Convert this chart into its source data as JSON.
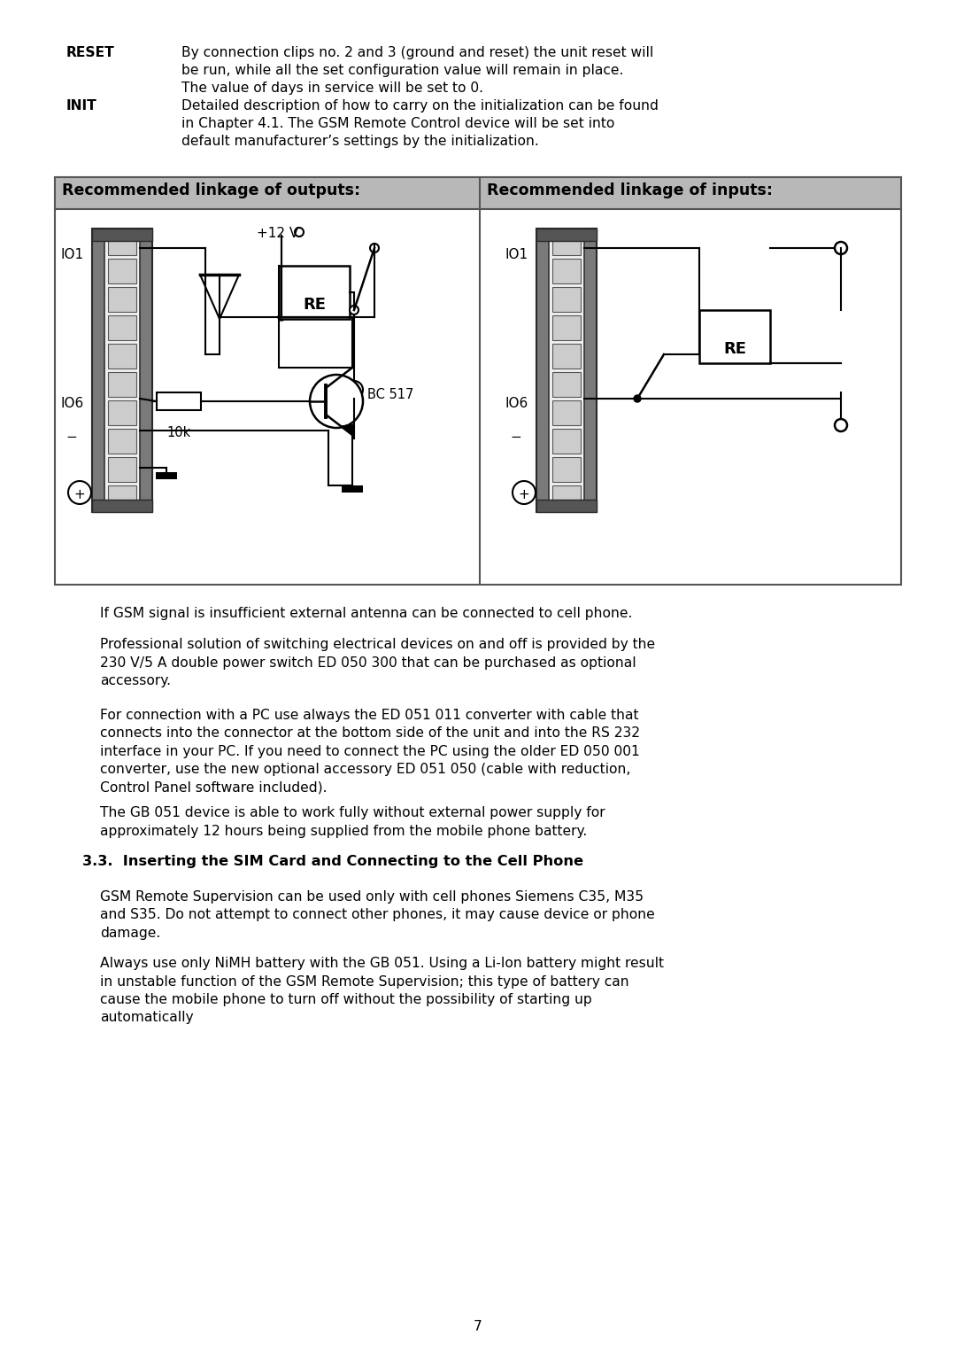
{
  "bg_color": "#ffffff",
  "text_color": "#000000",
  "table_border": "#555555",
  "header_bg": "#b8b8b8",
  "reset_label": "RESET",
  "reset_text_l1": "By connection clips no. 2 and 3 (ground and reset) the unit reset will",
  "reset_text_l2": "be run, while all the set configuration value will remain in place.",
  "reset_text_l3": "The value of days in service will be set to 0.",
  "init_label": "INIT",
  "init_text_l1": "Detailed description of how to carry on the initialization can be found",
  "init_text_l2": "in Chapter 4.1. The GSM Remote Control device will be set into",
  "init_text_l3": "default manufacturer’s settings by the initialization.",
  "table_header_left": "Recommended linkage of outputs:",
  "table_header_right": "Recommended linkage of inputs:",
  "para1": "If GSM signal is insufficient external antenna can be connected to cell phone.",
  "para2_l1": "Professional solution of switching electrical devices on and off is provided by the",
  "para2_l2": "230 V/5 A double power switch ED 050 300 that can be purchased as optional",
  "para2_l3": "accessory.",
  "para3_l1": "For connection with a PC use always the ED 051 011 converter with cable that",
  "para3_l2": "connects into the connector at the bottom side of the unit and into the RS 232",
  "para3_l3": "interface in your PC. If you need to connect the PC using the older ED 050 001",
  "para3_l4": "converter, use the new optional accessory ED 051 050 (cable with reduction,",
  "para3_l5": "Control Panel software included).",
  "para4_l1": "The GB 051 device is able to work fully without external power supply for",
  "para4_l2": "approximately 12 hours being supplied from the mobile phone battery.",
  "section_heading": "3.3.  Inserting the SIM Card and Connecting to the Cell Phone",
  "para5_l1": "GSM Remote Supervision can be used only with cell phones Siemens C35, M35",
  "para5_l2": "and S35. Do not attempt to connect other phones, it may cause device or phone",
  "para5_l3": "damage.",
  "para6_l1": "Always use only NiMH battery with the GB 051. Using a Li-Ion battery might result",
  "para6_l2": "in unstable function of the GSM Remote Supervision; this type of battery can",
  "para6_l3": "cause the mobile phone to turn off without the possibility of starting up",
  "para6_l4": "automatically",
  "page_number": "7"
}
